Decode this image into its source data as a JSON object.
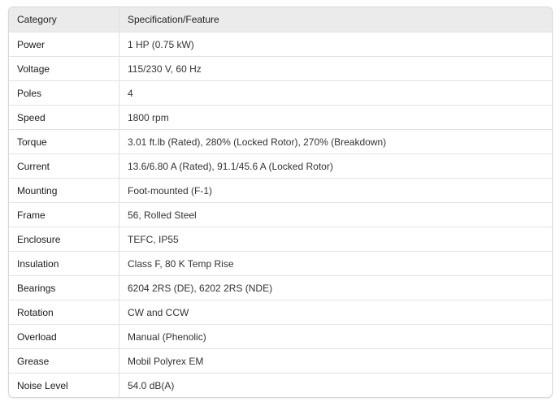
{
  "table": {
    "headers": [
      "Category",
      "Specification/Feature"
    ],
    "rows": [
      [
        "Power",
        "1 HP (0.75 kW)"
      ],
      [
        "Voltage",
        "115/230 V, 60 Hz"
      ],
      [
        "Poles",
        "4"
      ],
      [
        "Speed",
        "1800 rpm"
      ],
      [
        "Torque",
        "3.01 ft.lb (Rated), 280% (Locked Rotor), 270% (Breakdown)"
      ],
      [
        "Current",
        "13.6/6.80 A (Rated), 91.1/45.6 A (Locked Rotor)"
      ],
      [
        "Mounting",
        "Foot-mounted (F-1)"
      ],
      [
        "Frame",
        "56, Rolled Steel"
      ],
      [
        "Enclosure",
        "TEFC, IP55"
      ],
      [
        "Insulation",
        "Class F, 80 K Temp Rise"
      ],
      [
        "Bearings",
        "6204 2RS (DE), 6202 2RS (NDE)"
      ],
      [
        "Rotation",
        "CW and CCW"
      ],
      [
        "Overload",
        "Manual (Phenolic)"
      ],
      [
        "Grease",
        "Mobil Polyrex EM"
      ],
      [
        "Noise Level",
        "54.0 dB(A)"
      ]
    ]
  }
}
